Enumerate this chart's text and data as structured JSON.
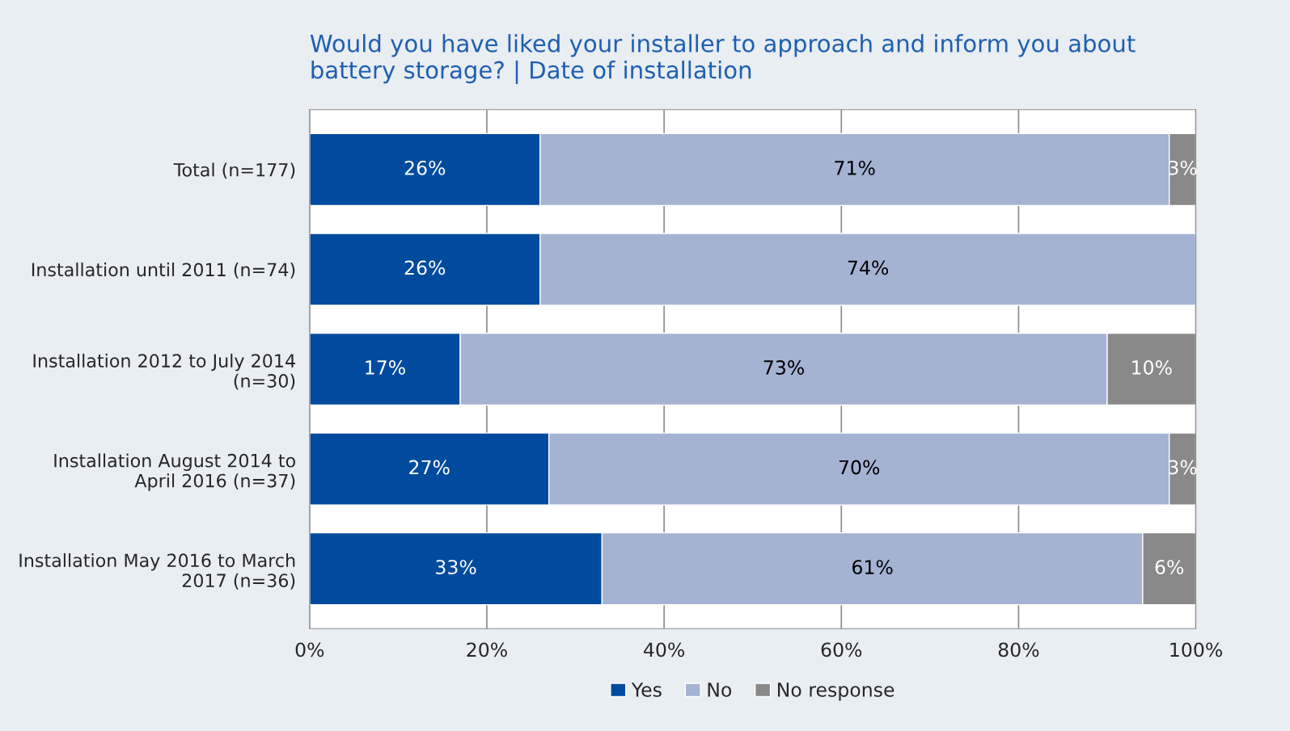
{
  "chart_data": {
    "type": "bar",
    "orientation": "horizontal",
    "stacked": true,
    "title": "Would you have liked your installer to approach and inform you about\nbattery storage? | Date of installation",
    "categories": [
      "Total (n=177)",
      "Installation until 2011 (n=74)",
      "Installation 2012 to July 2014\n(n=30)",
      "Installation August 2014 to\nApril 2016 (n=37)",
      "Installation May 2016 to March\n2017 (n=36)"
    ],
    "series": [
      {
        "name": "Yes",
        "color": "#004b9e",
        "values": [
          26,
          26,
          17,
          27,
          33
        ],
        "value_labels": [
          "26%",
          "26%",
          "17%",
          "27%",
          "33%"
        ]
      },
      {
        "name": "No",
        "color": "#a5b3d3",
        "values": [
          71,
          74,
          73,
          70,
          61
        ],
        "value_labels": [
          "71%",
          "74%",
          "73%",
          "70%",
          "61%"
        ]
      },
      {
        "name": "No response",
        "color": "#898989",
        "values": [
          3,
          null,
          10,
          3,
          6
        ],
        "value_labels": [
          "3%",
          null,
          "10%",
          "3%",
          "6%"
        ]
      }
    ],
    "xlim": [
      0,
      100
    ],
    "xticks": [
      {
        "value": 0,
        "label": "0%"
      },
      {
        "value": 20,
        "label": "20%"
      },
      {
        "value": 40,
        "label": "40%"
      },
      {
        "value": 60,
        "label": "60%"
      },
      {
        "value": 80,
        "label": "80%"
      },
      {
        "value": 100,
        "label": "100%"
      }
    ],
    "grid": "x",
    "legend": "bottom"
  }
}
